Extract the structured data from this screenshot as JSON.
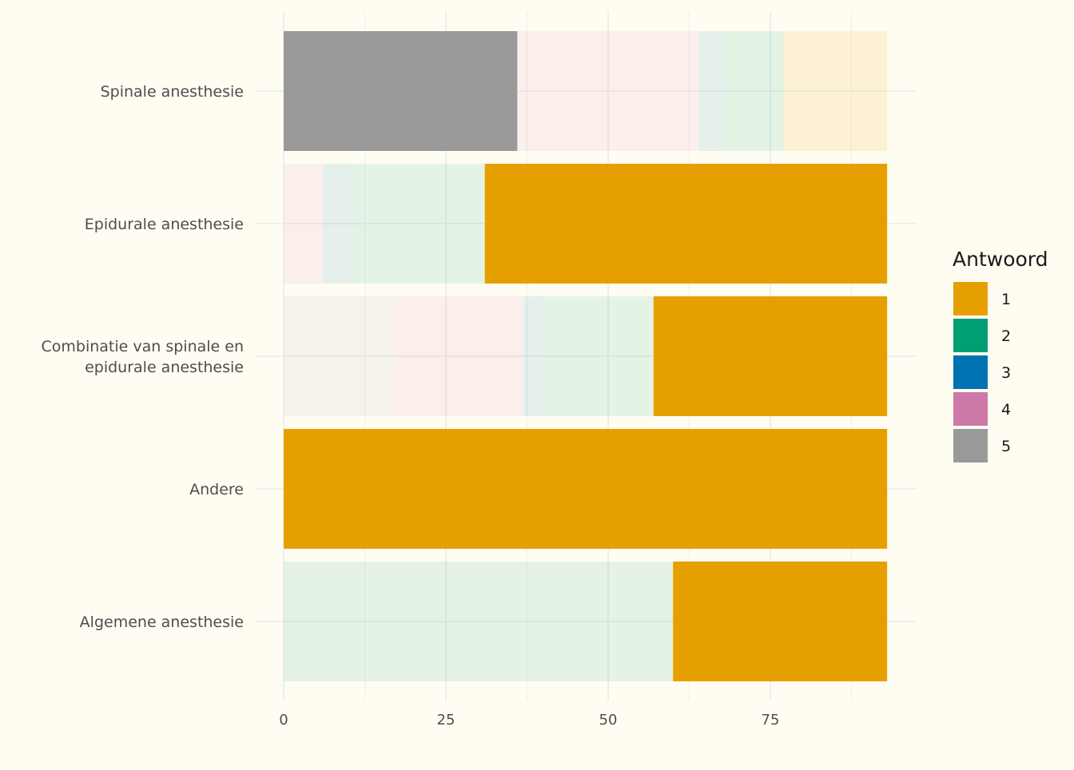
{
  "chart_data": {
    "type": "bar",
    "orientation": "horizontal",
    "stacked": true,
    "categories": [
      "Spinale anesthesie",
      "Epidurale anesthesie",
      [
        "Combinatie van spinale en",
        "epidurale anesthesie"
      ],
      "Andere",
      "Algemene anesthesie"
    ],
    "segment_order": [
      "5",
      "4",
      "3",
      "2",
      "1"
    ],
    "series": [
      {
        "name": "1",
        "color": "#E69F00",
        "values": [
          16,
          62,
          36,
          93,
          33
        ]
      },
      {
        "name": "2",
        "color": "#009E73",
        "values": [
          9,
          20,
          17,
          0,
          60
        ]
      },
      {
        "name": "3",
        "color": "#0072B2",
        "values": [
          4,
          5,
          3,
          0,
          0
        ]
      },
      {
        "name": "4",
        "color": "#CC79A7",
        "values": [
          28,
          6,
          20,
          0,
          0
        ]
      },
      {
        "name": "5",
        "color": "#999999",
        "values": [
          36,
          0,
          17,
          0,
          0
        ]
      }
    ],
    "series_alpha": [
      [
        0.12,
        1,
        1,
        1,
        1
      ],
      [
        0.1,
        0.1,
        0.1,
        1,
        0.1
      ],
      [
        0.1,
        0.1,
        0.1,
        1,
        1
      ],
      [
        0.1,
        0.1,
        0.1,
        1,
        1
      ],
      [
        1,
        1,
        0.1,
        1,
        1
      ]
    ],
    "x_ticks": [
      0,
      25,
      50,
      75
    ],
    "xlim": [
      0,
      97.5
    ],
    "xlabel": "",
    "ylabel": "",
    "grid": true,
    "legend": {
      "title": "Antwoord",
      "position": "right",
      "entries": [
        "1",
        "2",
        "3",
        "4",
        "5"
      ]
    },
    "background": "#fffdf2",
    "gridline_color": "#ebebeb"
  }
}
